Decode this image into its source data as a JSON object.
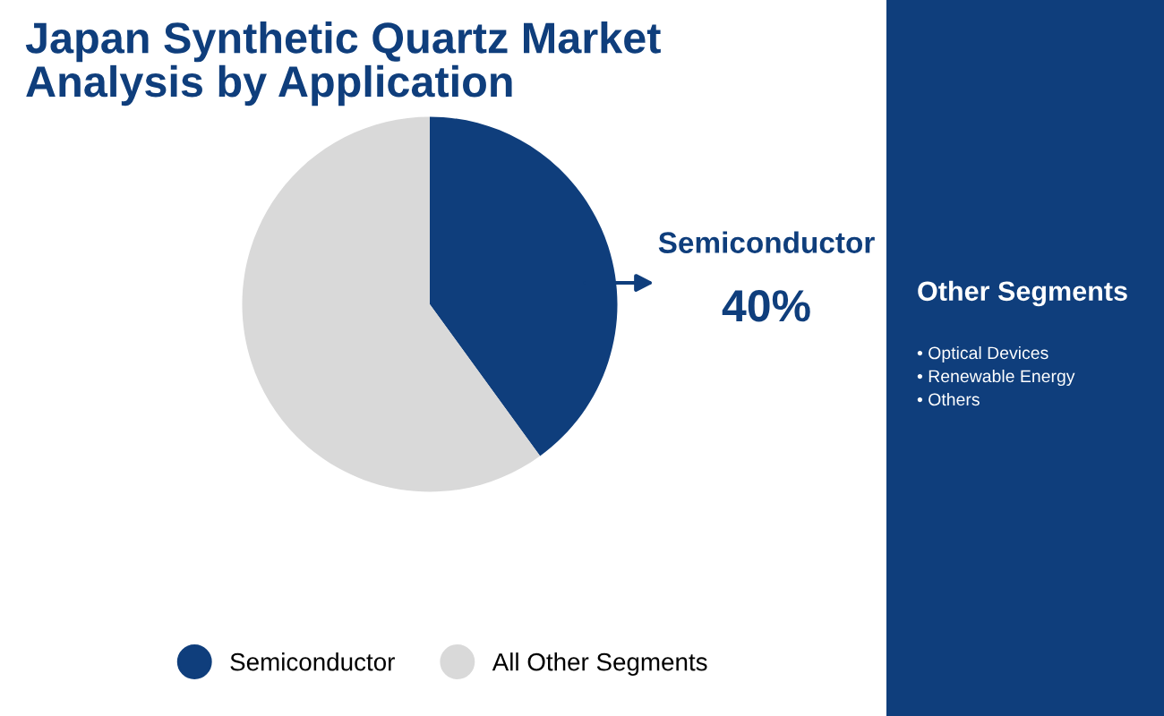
{
  "chart_data": {
    "type": "pie",
    "title": "Japan Synthetic Quartz Market\nAnalysis by Application",
    "categories": [
      "Semiconductor",
      "All Other Segments"
    ],
    "values": [
      40,
      60
    ],
    "colors": [
      "#0f3e7c",
      "#d9d9d9"
    ],
    "value_labels": [
      "40%",
      null
    ],
    "legend": "bottom",
    "annotations": [
      "Other Segments",
      "• Optical Devices",
      "• Renewable Energy",
      "• Others"
    ]
  }
}
